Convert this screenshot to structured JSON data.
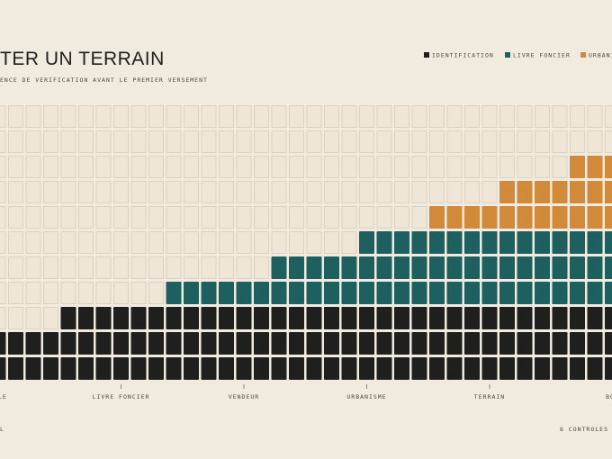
{
  "chart_data": {
    "type": "waffle",
    "title": "TER UN TERRAIN",
    "subtitle": "ENCE DE VERIFICATION AVANT LE PREMIER VERSEMENT",
    "rows": 11,
    "categories": [
      "ELLE",
      null,
      null,
      null,
      null,
      null,
      null,
      "LIVRE FONCIER",
      null,
      null,
      null,
      null,
      null,
      null,
      "VENDEUR",
      null,
      null,
      null,
      null,
      null,
      null,
      "URBANISME",
      null,
      null,
      null,
      null,
      null,
      null,
      "TERRAIN",
      null,
      null,
      null,
      null,
      null,
      null,
      "BOR"
    ],
    "series": [
      {
        "name": "IDENTIFICATION",
        "color": "#1f1f1d",
        "values": [
          2,
          2,
          2,
          2,
          3,
          3,
          3,
          3,
          3,
          3,
          3,
          3,
          3,
          3,
          3,
          3,
          3,
          3,
          3,
          3,
          3,
          3,
          3,
          3,
          3,
          3,
          3,
          3,
          3,
          3,
          3,
          3,
          3,
          3,
          3,
          3
        ]
      },
      {
        "name": "LIVRE FONCIER",
        "color": "#1e5f5f",
        "values": [
          0,
          0,
          0,
          0,
          0,
          0,
          0,
          0,
          0,
          0,
          1,
          1,
          1,
          1,
          1,
          1,
          2,
          2,
          2,
          2,
          2,
          3,
          3,
          3,
          3,
          3,
          3,
          3,
          3,
          3,
          3,
          3,
          3,
          3,
          3,
          3
        ]
      },
      {
        "name": "URBANIS",
        "color": "#d08a3a",
        "values": [
          0,
          0,
          0,
          0,
          0,
          0,
          0,
          0,
          0,
          0,
          0,
          0,
          0,
          0,
          0,
          0,
          0,
          0,
          0,
          0,
          0,
          0,
          0,
          0,
          0,
          1,
          1,
          1,
          1,
          2,
          2,
          2,
          2,
          3,
          3,
          3
        ]
      }
    ],
    "footer_left": "L",
    "footer_right": "6 CONTROLES"
  }
}
